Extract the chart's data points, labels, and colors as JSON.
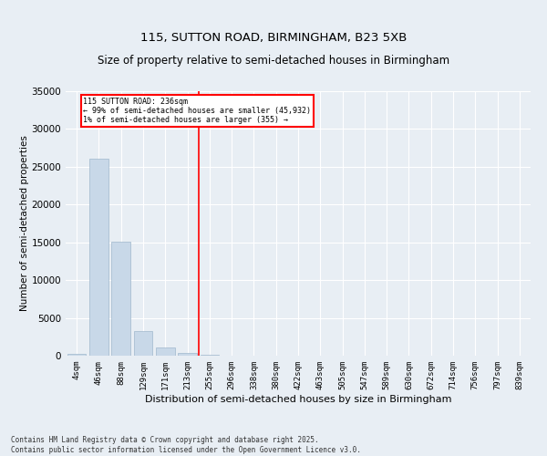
{
  "title1": "115, SUTTON ROAD, BIRMINGHAM, B23 5XB",
  "title2": "Size of property relative to semi-detached houses in Birmingham",
  "xlabel": "Distribution of semi-detached houses by size in Birmingham",
  "ylabel": "Number of semi-detached properties",
  "categories": [
    "4sqm",
    "46sqm",
    "88sqm",
    "129sqm",
    "171sqm",
    "213sqm",
    "255sqm",
    "296sqm",
    "338sqm",
    "380sqm",
    "422sqm",
    "463sqm",
    "505sqm",
    "547sqm",
    "589sqm",
    "630sqm",
    "672sqm",
    "714sqm",
    "756sqm",
    "797sqm",
    "839sqm"
  ],
  "values": [
    300,
    26100,
    15100,
    3300,
    1050,
    400,
    100,
    50,
    20,
    10,
    5,
    3,
    2,
    1,
    1,
    0,
    0,
    0,
    0,
    0,
    0
  ],
  "bar_color": "#c8d8e8",
  "bar_edge_color": "#a0b8cc",
  "vline_x": 5.5,
  "vline_color": "red",
  "annotation_title": "115 SUTTON ROAD: 236sqm",
  "annotation_line1": "← 99% of semi-detached houses are smaller (45,932)",
  "annotation_line2": "1% of semi-detached houses are larger (355) →",
  "annotation_box_color": "red",
  "ylim": [
    0,
    35000
  ],
  "yticks": [
    0,
    5000,
    10000,
    15000,
    20000,
    25000,
    30000,
    35000
  ],
  "footer1": "Contains HM Land Registry data © Crown copyright and database right 2025.",
  "footer2": "Contains public sector information licensed under the Open Government Licence v3.0.",
  "bg_color": "#e8eef4",
  "plot_bg_color": "#e8eef4"
}
